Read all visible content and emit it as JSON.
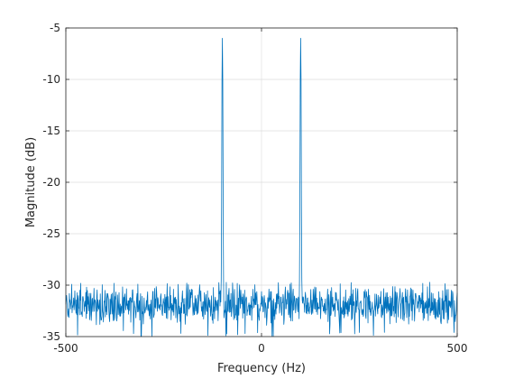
{
  "chart_data": {
    "type": "line",
    "title": "",
    "xlabel": "Frequency (Hz)",
    "ylabel": "Magnitude (dB)",
    "xlim": [
      -500,
      500
    ],
    "ylim": [
      -35,
      -5
    ],
    "xticks": [
      -500,
      0,
      500
    ],
    "xtick_labels": [
      "-500",
      "0",
      "500"
    ],
    "yticks": [
      -35,
      -30,
      -25,
      -20,
      -15,
      -10,
      -5
    ],
    "ytick_labels": [
      "-35",
      "-30",
      "-25",
      "-20",
      "-15",
      "-10",
      "-5"
    ],
    "grid": true,
    "legend": "none",
    "line_color": "#0072BD",
    "noise_floor_db": {
      "mean": -32,
      "min": -35,
      "max": -30
    },
    "peaks": [
      {
        "x": -100,
        "y": -6
      },
      {
        "x": 100,
        "y": -6
      }
    ],
    "series": [
      {
        "values_note": "",
        "x_range": [
          -500,
          500
        ],
        "points": 1000
      }
    ]
  }
}
